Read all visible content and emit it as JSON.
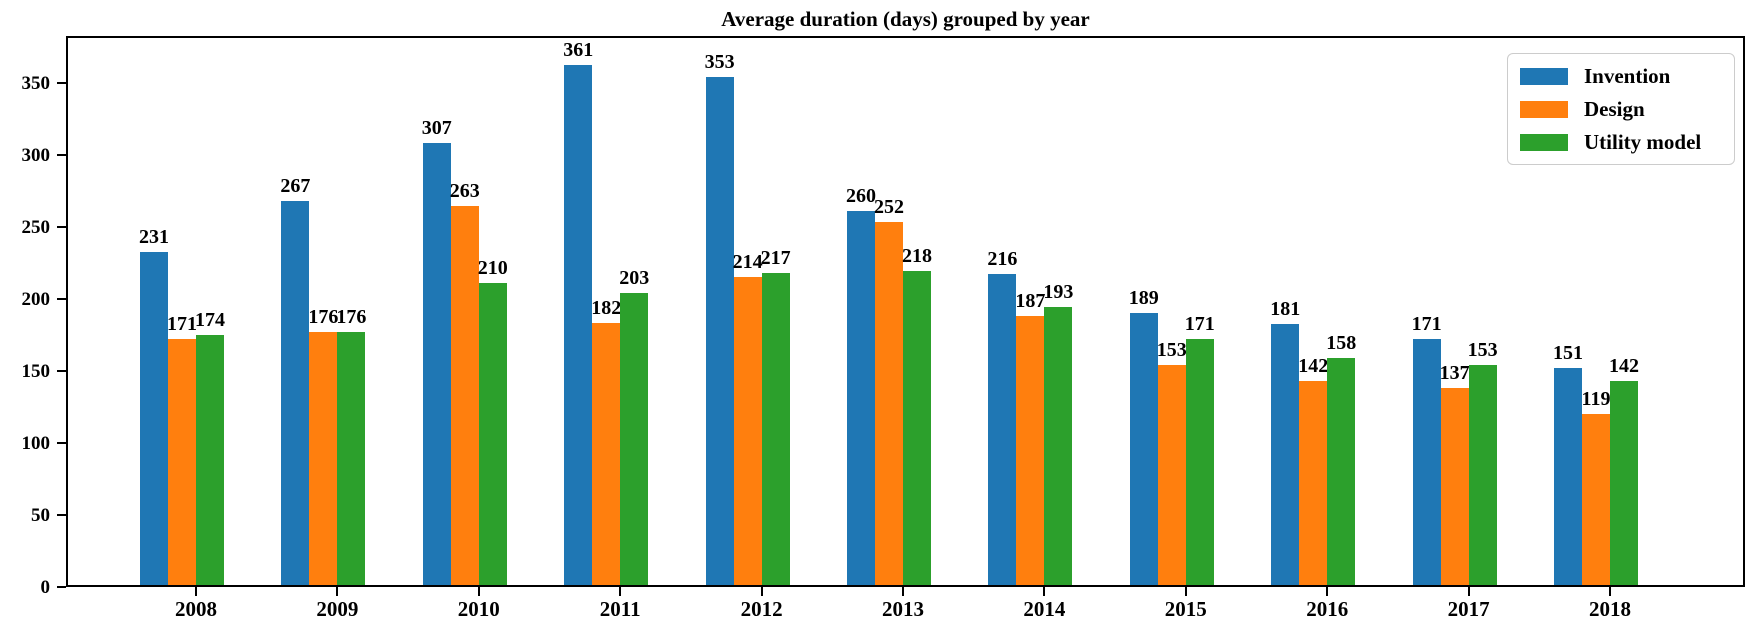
{
  "chart_data": {
    "type": "bar",
    "title": "Average duration (days) grouped by year",
    "xlabel": "",
    "ylabel": "",
    "categories": [
      "2008",
      "2009",
      "2010",
      "2011",
      "2012",
      "2013",
      "2014",
      "2015",
      "2016",
      "2017",
      "2018"
    ],
    "series": [
      {
        "name": "Invention",
        "color": "#1f77b4",
        "values": [
          231,
          267,
          307,
          361,
          353,
          260,
          216,
          189,
          181,
          171,
          151
        ]
      },
      {
        "name": "Design",
        "color": "#ff7f0e",
        "values": [
          171,
          176,
          263,
          182,
          214,
          252,
          187,
          153,
          142,
          137,
          119
        ]
      },
      {
        "name": "Utility model",
        "color": "#2ca02c",
        "values": [
          174,
          176,
          210,
          203,
          217,
          218,
          193,
          171,
          158,
          153,
          142
        ]
      }
    ],
    "ylim": [
      0,
      380
    ],
    "yticks": [
      0,
      50,
      100,
      150,
      200,
      250,
      300,
      350
    ],
    "grid": false,
    "legend_position": "upper right",
    "bar_value_labels": true,
    "axis_color": "#000000",
    "background_color": "#ffffff"
  }
}
